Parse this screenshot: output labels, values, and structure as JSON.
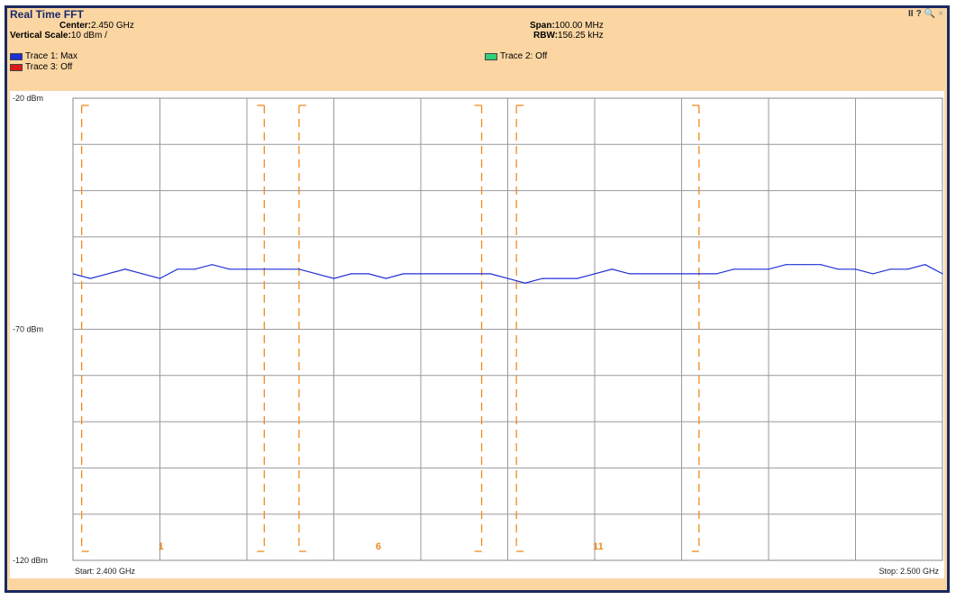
{
  "window": {
    "title": "Real Time FFT",
    "controls": {
      "pause": "II",
      "help": "?",
      "zoom": "🔍",
      "close": "×"
    }
  },
  "info": {
    "center_label": "Center:",
    "center_value": "2.450 GHz",
    "vscale_label": "Vertical Scale:",
    "vscale_value": "10 dBm /",
    "span_label": "Span:",
    "span_value": "100.00 MHz",
    "rbw_label": "RBW:",
    "rbw_value": "156.25 kHz"
  },
  "legend": [
    {
      "label": "Trace 1: Max",
      "color": "#1f2fd8"
    },
    {
      "label": "Trace 2: Off",
      "color": "#30d07a"
    },
    {
      "label": "Trace 3: Off",
      "color": "#e01818"
    }
  ],
  "chart_data": {
    "type": "line",
    "title": "Real Time FFT",
    "xlabel": "",
    "ylabel": "",
    "xlim": [
      2.4,
      2.5
    ],
    "ylim": [
      -120,
      -20
    ],
    "x_unit": "GHz",
    "y_unit": "dBm",
    "y_tick_labels": [
      "-20 dBm",
      "-70 dBm",
      "-120 dBm"
    ],
    "start_label": "Start: 2.400 GHz",
    "stop_label": "Stop: 2.500 GHz",
    "grid": true,
    "series": [
      {
        "name": "Trace 1: Max",
        "color": "#1f2fd8",
        "x": [
          2.4,
          2.402,
          2.404,
          2.406,
          2.408,
          2.41,
          2.412,
          2.414,
          2.416,
          2.418,
          2.42,
          2.422,
          2.424,
          2.426,
          2.428,
          2.43,
          2.432,
          2.434,
          2.436,
          2.438,
          2.44,
          2.442,
          2.444,
          2.446,
          2.448,
          2.45,
          2.452,
          2.454,
          2.456,
          2.458,
          2.46,
          2.462,
          2.464,
          2.466,
          2.468,
          2.47,
          2.472,
          2.474,
          2.476,
          2.478,
          2.48,
          2.482,
          2.484,
          2.486,
          2.488,
          2.49,
          2.492,
          2.494,
          2.496,
          2.498,
          2.5
        ],
        "values": [
          -58,
          -59,
          -58,
          -57,
          -58,
          -59,
          -57,
          -57,
          -56,
          -57,
          -57,
          -57,
          -57,
          -57,
          -58,
          -59,
          -58,
          -58,
          -59,
          -58,
          -58,
          -58,
          -58,
          -58,
          -58,
          -59,
          -60,
          -59,
          -59,
          -59,
          -58,
          -57,
          -58,
          -58,
          -58,
          -58,
          -58,
          -58,
          -57,
          -57,
          -57,
          -56,
          -56,
          -56,
          -57,
          -57,
          -58,
          -57,
          -57,
          -56,
          -58
        ]
      }
    ],
    "channel_markers": [
      {
        "label": "1",
        "start": 2.401,
        "end": 2.422
      },
      {
        "label": "6",
        "start": 2.426,
        "end": 2.447
      },
      {
        "label": "11",
        "start": 2.451,
        "end": 2.472
      }
    ]
  }
}
